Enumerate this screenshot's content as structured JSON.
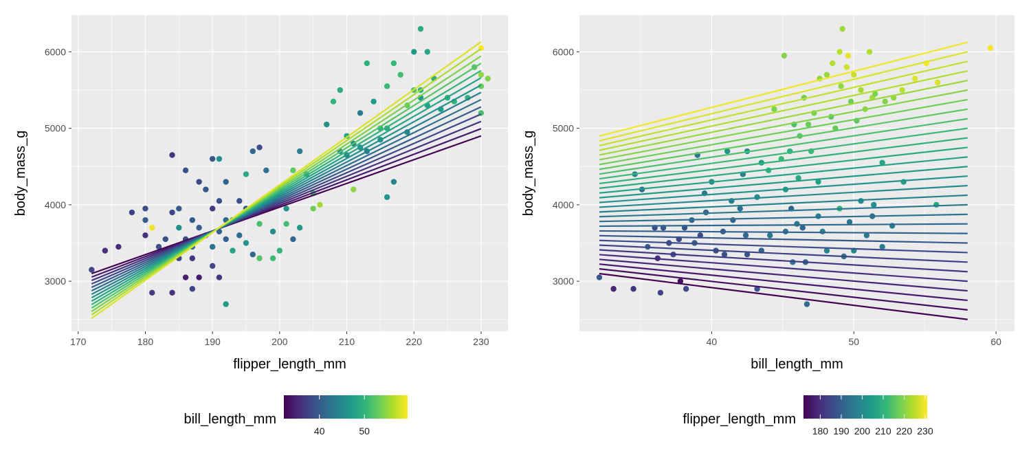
{
  "chart_data": [
    {
      "type": "scatter",
      "xlabel": "flipper_length_mm",
      "ylabel": "body_mass_g",
      "xlim": [
        169,
        234
      ],
      "ylim": [
        2345,
        6480
      ],
      "x_ticks": [
        170,
        180,
        190,
        200,
        210,
        220,
        230
      ],
      "x_tick_labels": [
        "170",
        "180",
        "190",
        "200",
        "210",
        "220",
        "230"
      ],
      "y_ticks": [
        3000,
        4000,
        5000,
        6000
      ],
      "y_tick_labels": [
        "3000",
        "4000",
        "5000",
        "6000"
      ],
      "grid": true,
      "legend": {
        "title": "bill_length_mm",
        "type": "colorbar",
        "position": "bottom",
        "range": [
          32.1,
          59.6
        ],
        "ticks": [
          40,
          50
        ],
        "tick_labels": [
          "40",
          "50"
        ],
        "colormap": "viridis"
      },
      "points": [
        [
          172,
          3150,
          37.8
        ],
        [
          174,
          3400,
          36.0
        ],
        [
          176,
          3450,
          35.5
        ],
        [
          178,
          3900,
          37.5
        ],
        [
          180,
          3950,
          38.5
        ],
        [
          180,
          3600,
          36.2
        ],
        [
          180,
          3800,
          40.2
        ],
        [
          181,
          3700,
          59.0
        ],
        [
          181,
          2850,
          36.8
        ],
        [
          182,
          3450,
          38.6
        ],
        [
          183,
          3550,
          39.0
        ],
        [
          183,
          3400,
          37.0
        ],
        [
          184,
          4650,
          36.4
        ],
        [
          184,
          2850,
          36.2
        ],
        [
          184,
          3900,
          38.1
        ],
        [
          185,
          3950,
          40.3
        ],
        [
          185,
          3700,
          46.0
        ],
        [
          185,
          3300,
          37.7
        ],
        [
          186,
          3550,
          38.6
        ],
        [
          186,
          4450,
          38.8
        ],
        [
          186,
          3050,
          34.5
        ],
        [
          187,
          3300,
          36.6
        ],
        [
          187,
          3800,
          39.8
        ],
        [
          187,
          3450,
          41.2
        ],
        [
          187,
          2900,
          37.9
        ],
        [
          188,
          4300,
          38.2
        ],
        [
          188,
          3050,
          34.1
        ],
        [
          188,
          3700,
          40.3
        ],
        [
          189,
          4200,
          39.5
        ],
        [
          189,
          3600,
          41.1
        ],
        [
          190,
          3950,
          36.7
        ],
        [
          190,
          3450,
          42.5
        ],
        [
          190,
          4600,
          39.6
        ],
        [
          190,
          3200,
          38.0
        ],
        [
          191,
          4050,
          38.9
        ],
        [
          191,
          3650,
          40.8
        ],
        [
          191,
          4600,
          46.0
        ],
        [
          191,
          3050,
          36.5
        ],
        [
          192,
          3800,
          41.4
        ],
        [
          192,
          2700,
          46.9
        ],
        [
          192,
          3550,
          40.6
        ],
        [
          192,
          4300,
          40.9
        ],
        [
          193,
          3800,
          43.2
        ],
        [
          193,
          3400,
          48.2
        ],
        [
          194,
          4050,
          39.1
        ],
        [
          194,
          3600,
          42.0
        ],
        [
          195,
          3950,
          40.0
        ],
        [
          195,
          4400,
          48.6
        ],
        [
          195,
          3500,
          46.4
        ],
        [
          196,
          4700,
          41.1
        ],
        [
          196,
          3900,
          50.9
        ],
        [
          196,
          3350,
          41.5
        ],
        [
          197,
          4750,
          38.6
        ],
        [
          197,
          3750,
          51.3
        ],
        [
          197,
          3300,
          52.0
        ],
        [
          198,
          3950,
          49.6
        ],
        [
          198,
          4450,
          42.5
        ],
        [
          199,
          3300,
          50.8
        ],
        [
          199,
          3650,
          45.2
        ],
        [
          200,
          4200,
          39.2
        ],
        [
          200,
          3400,
          50.0
        ],
        [
          201,
          3950,
          46.1
        ],
        [
          201,
          3750,
          51.2
        ],
        [
          202,
          4450,
          52.5
        ],
        [
          202,
          3550,
          41.1
        ],
        [
          203,
          3700,
          46.5
        ],
        [
          203,
          4700,
          44.0
        ],
        [
          205,
          4150,
          51.5
        ],
        [
          205,
          3950,
          53.5
        ],
        [
          206,
          4000,
          55.8
        ],
        [
          207,
          5050,
          45.8
        ],
        [
          208,
          5350,
          49.8
        ],
        [
          209,
          4700,
          45.2
        ],
        [
          209,
          5500,
          49.1
        ],
        [
          210,
          4650,
          44.9
        ],
        [
          210,
          4900,
          48.8
        ],
        [
          211,
          4200,
          55.0
        ],
        [
          212,
          5200,
          43.6
        ],
        [
          212,
          4750,
          45.5
        ],
        [
          213,
          5850,
          49.3
        ],
        [
          213,
          4700,
          44.0
        ],
        [
          214,
          5350,
          47.2
        ],
        [
          215,
          4850,
          46.2
        ],
        [
          215,
          5000,
          49.6
        ],
        [
          216,
          5000,
          48.7
        ],
        [
          216,
          4100,
          46.5
        ],
        [
          216,
          5550,
          50.7
        ],
        [
          217,
          4300,
          44.9
        ],
        [
          217,
          5850,
          50.5
        ],
        [
          218,
          5700,
          51.1
        ],
        [
          219,
          5300,
          52.8
        ],
        [
          220,
          5500,
          51.5
        ],
        [
          220,
          6000,
          47.0
        ],
        [
          221,
          5500,
          49.5
        ],
        [
          221,
          6300,
          49.2
        ],
        [
          222,
          6000,
          48.4
        ],
        [
          222,
          5300,
          47.6
        ],
        [
          223,
          5650,
          49.1
        ],
        [
          224,
          5250,
          47.5
        ],
        [
          225,
          5400,
          49.4
        ],
        [
          226,
          5350,
          50.0
        ],
        [
          228,
          5400,
          50.1
        ],
        [
          229,
          5800,
          52.2
        ],
        [
          230,
          6050,
          59.6
        ],
        [
          230,
          5700,
          55.1
        ],
        [
          231,
          5650,
          54.3
        ],
        [
          230,
          5200,
          51.5
        ],
        [
          230,
          5550,
          53.4
        ],
        [
          221,
          5400,
          46.8
        ],
        [
          219,
          4950,
          45.5
        ],
        [
          211,
          4800,
          44.5
        ],
        [
          204,
          4400,
          47.0
        ]
      ],
      "fitted_lines": {
        "x_range": [
          172,
          230
        ],
        "bill_length_mm": [
          32.1,
          34.1,
          36.1,
          38.1,
          40.1,
          42.1,
          44.1,
          46.1,
          48.1,
          50.1,
          52.1,
          54.1,
          56.1,
          58.1
        ],
        "body_mass_g_at_x_min": [
          3100,
          3055,
          3010,
          2965,
          2920,
          2875,
          2830,
          2785,
          2740,
          2695,
          2650,
          2605,
          2560,
          2515
        ],
        "body_mass_g_at_x_max": [
          4900,
          4995,
          5090,
          5185,
          5280,
          5375,
          5470,
          5565,
          5660,
          5755,
          5850,
          5945,
          6040,
          6130
        ]
      }
    },
    {
      "type": "scatter",
      "xlabel": "bill_length_mm",
      "ylabel": "body_mass_g",
      "xlim": [
        30.7,
        61.3
      ],
      "ylim": [
        2345,
        6480
      ],
      "x_ticks": [
        40,
        50,
        60
      ],
      "x_tick_labels": [
        "40",
        "50",
        "60"
      ],
      "y_ticks": [
        3000,
        4000,
        5000,
        6000
      ],
      "y_tick_labels": [
        "3000",
        "4000",
        "5000",
        "6000"
      ],
      "grid": true,
      "legend": {
        "title": "flipper_length_mm",
        "type": "colorbar",
        "position": "bottom",
        "range": [
          172,
          231
        ],
        "ticks": [
          180,
          190,
          200,
          210,
          220,
          230
        ],
        "tick_labels": [
          "180",
          "190",
          "200",
          "210",
          "220",
          "230"
        ],
        "colormap": "viridis"
      },
      "points": [
        [
          32.1,
          3050,
          188
        ],
        [
          33.1,
          2900,
          178
        ],
        [
          34.5,
          2900,
          181
        ],
        [
          34.6,
          4400,
          198
        ],
        [
          35.1,
          4200,
          193
        ],
        [
          35.5,
          3450,
          190
        ],
        [
          36.0,
          3700,
          186
        ],
        [
          36.2,
          3300,
          180
        ],
        [
          36.4,
          2850,
          184
        ],
        [
          36.6,
          3700,
          187
        ],
        [
          37.0,
          3500,
          185
        ],
        [
          37.3,
          3350,
          186
        ],
        [
          37.7,
          3550,
          184
        ],
        [
          37.8,
          3000,
          174
        ],
        [
          38.1,
          3700,
          187
        ],
        [
          38.2,
          2900,
          185
        ],
        [
          38.6,
          3800,
          191
        ],
        [
          38.8,
          3500,
          190
        ],
        [
          39.0,
          4650,
          195
        ],
        [
          39.2,
          3600,
          185
        ],
        [
          39.5,
          4150,
          196
        ],
        [
          39.6,
          3900,
          191
        ],
        [
          40.0,
          4300,
          200
        ],
        [
          40.3,
          3400,
          187
        ],
        [
          40.8,
          3650,
          189
        ],
        [
          41.1,
          4700,
          203
        ],
        [
          41.4,
          4050,
          196
        ],
        [
          41.5,
          3800,
          190
        ],
        [
          42.0,
          3950,
          194
        ],
        [
          42.2,
          4400,
          197
        ],
        [
          42.5,
          4700,
          202
        ],
        [
          43.2,
          4100,
          200
        ],
        [
          43.5,
          4550,
          205
        ],
        [
          44.0,
          4450,
          210
        ],
        [
          44.4,
          5250,
          219
        ],
        [
          44.9,
          4600,
          212
        ],
        [
          45.1,
          5950,
          220
        ],
        [
          45.2,
          4200,
          204
        ],
        [
          45.5,
          4700,
          210
        ],
        [
          45.8,
          5050,
          214
        ],
        [
          46.1,
          4350,
          208
        ],
        [
          46.2,
          4900,
          215
        ],
        [
          46.5,
          5400,
          218
        ],
        [
          46.8,
          5050,
          217
        ],
        [
          47.0,
          4700,
          212
        ],
        [
          47.2,
          5200,
          219
        ],
        [
          47.5,
          4300,
          206
        ],
        [
          47.6,
          5650,
          221
        ],
        [
          48.1,
          5700,
          222
        ],
        [
          48.4,
          5150,
          216
        ],
        [
          48.5,
          5850,
          224
        ],
        [
          48.7,
          5000,
          217
        ],
        [
          49.0,
          6000,
          225
        ],
        [
          49.1,
          5550,
          221
        ],
        [
          49.2,
          6300,
          222
        ],
        [
          49.5,
          5800,
          227
        ],
        [
          49.6,
          5950,
          229
        ],
        [
          49.8,
          5350,
          218
        ],
        [
          50.0,
          5700,
          226
        ],
        [
          50.2,
          5100,
          216
        ],
        [
          50.5,
          5500,
          223
        ],
        [
          50.8,
          5250,
          221
        ],
        [
          51.1,
          6000,
          224
        ],
        [
          51.3,
          5400,
          223
        ],
        [
          51.5,
          5450,
          219
        ],
        [
          52.0,
          4550,
          207
        ],
        [
          52.2,
          5350,
          220
        ],
        [
          52.8,
          5400,
          221
        ],
        [
          53.4,
          5500,
          225
        ],
        [
          54.3,
          5650,
          228
        ],
        [
          55.1,
          5850,
          230
        ],
        [
          55.9,
          5600,
          228
        ],
        [
          59.6,
          6050,
          230
        ],
        [
          46.0,
          3750,
          196
        ],
        [
          47.5,
          3850,
          198
        ],
        [
          49.7,
          3775,
          195
        ],
        [
          50.9,
          3600,
          196
        ],
        [
          51.3,
          3850,
          193
        ],
        [
          52.7,
          3725,
          197
        ],
        [
          50.5,
          4050,
          201
        ],
        [
          46.4,
          3700,
          191
        ],
        [
          45.2,
          3650,
          194
        ],
        [
          42.4,
          3600,
          192
        ],
        [
          43.2,
          2900,
          187
        ],
        [
          40.9,
          3350,
          187
        ],
        [
          49.0,
          3950,
          210
        ],
        [
          51.4,
          4000,
          201
        ],
        [
          55.8,
          4000,
          207
        ],
        [
          53.5,
          4300,
          205
        ],
        [
          45.6,
          3950,
          190
        ],
        [
          44.1,
          3600,
          196
        ],
        [
          46.7,
          2700,
          192
        ],
        [
          42.5,
          3350,
          187
        ],
        [
          48.1,
          3400,
          199
        ],
        [
          50.0,
          3400,
          200
        ],
        [
          52.0,
          3450,
          197
        ],
        [
          46.6,
          3250,
          193
        ],
        [
          47.8,
          3650,
          199
        ],
        [
          49.3,
          3325,
          195
        ],
        [
          45.7,
          3250,
          195
        ],
        [
          43.5,
          3400,
          191
        ]
      ],
      "fitted_lines": {
        "x_range": [
          32.1,
          58.0
        ],
        "flipper_length_mm": [
          172,
          174,
          176,
          178,
          180,
          182,
          184,
          186,
          188,
          190,
          192,
          194,
          196,
          198,
          200,
          202,
          204,
          206,
          208,
          210,
          212,
          214,
          216,
          218,
          220,
          222,
          224,
          226,
          228,
          230
        ],
        "body_mass_g_at_x_min": [
          3100,
          3162,
          3224,
          3286,
          3348,
          3410,
          3472,
          3534,
          3596,
          3658,
          3720,
          3782,
          3844,
          3906,
          3968,
          4030,
          4092,
          4154,
          4216,
          4278,
          4340,
          4402,
          4464,
          4526,
          4588,
          4650,
          4712,
          4774,
          4836,
          4898
        ],
        "body_mass_g_at_x_max": [
          2500,
          2625,
          2750,
          2875,
          3000,
          3125,
          3250,
          3375,
          3500,
          3625,
          3750,
          3875,
          4000,
          4125,
          4250,
          4375,
          4500,
          4625,
          4750,
          4875,
          5000,
          5125,
          5250,
          5375,
          5500,
          5625,
          5750,
          5875,
          6000,
          6125
        ]
      }
    }
  ]
}
